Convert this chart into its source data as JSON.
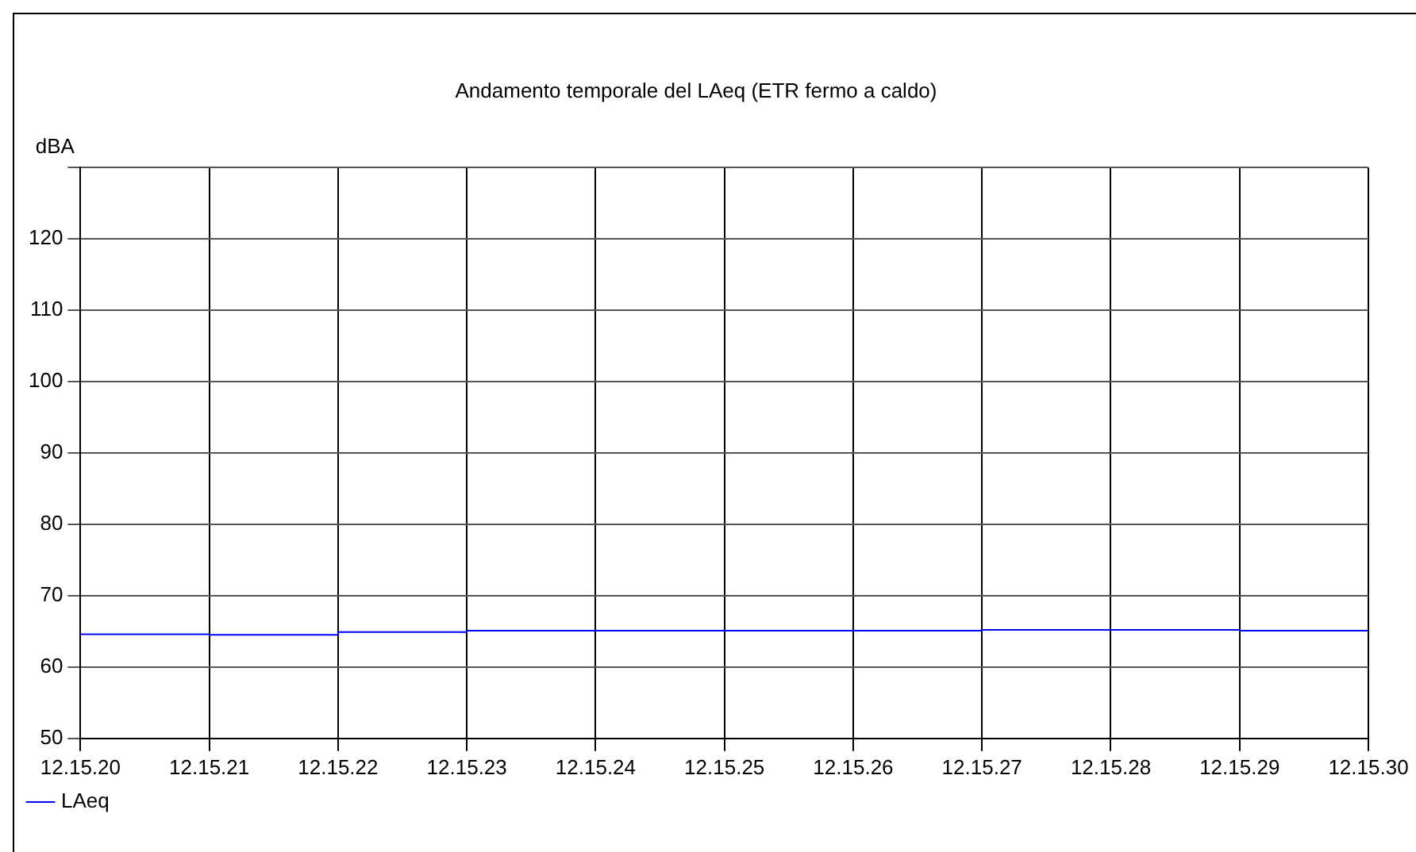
{
  "chart_data": {
    "type": "step",
    "title": "Andamento temporale del LAeq (ETR fermo a caldo)",
    "ylabel": "dBA",
    "categories": [
      "12.15.20",
      "12.15.21",
      "12.15.22",
      "12.15.23",
      "12.15.24",
      "12.15.25",
      "12.15.26",
      "12.15.27",
      "12.15.28",
      "12.15.29",
      "12.15.30"
    ],
    "series": [
      {
        "name": "LAeq",
        "color": "#0000ff",
        "values": [
          64.6,
          64.5,
          64.9,
          65.1,
          65.1,
          65.1,
          65.1,
          65.2,
          65.2,
          65.1,
          65.1
        ]
      }
    ],
    "ylim": [
      50,
      130
    ],
    "yticks": [
      50,
      60,
      70,
      80,
      90,
      100,
      110,
      120,
      {
        "value": 130,
        "label": null
      }
    ],
    "grid": true,
    "legend": "bottom left"
  }
}
